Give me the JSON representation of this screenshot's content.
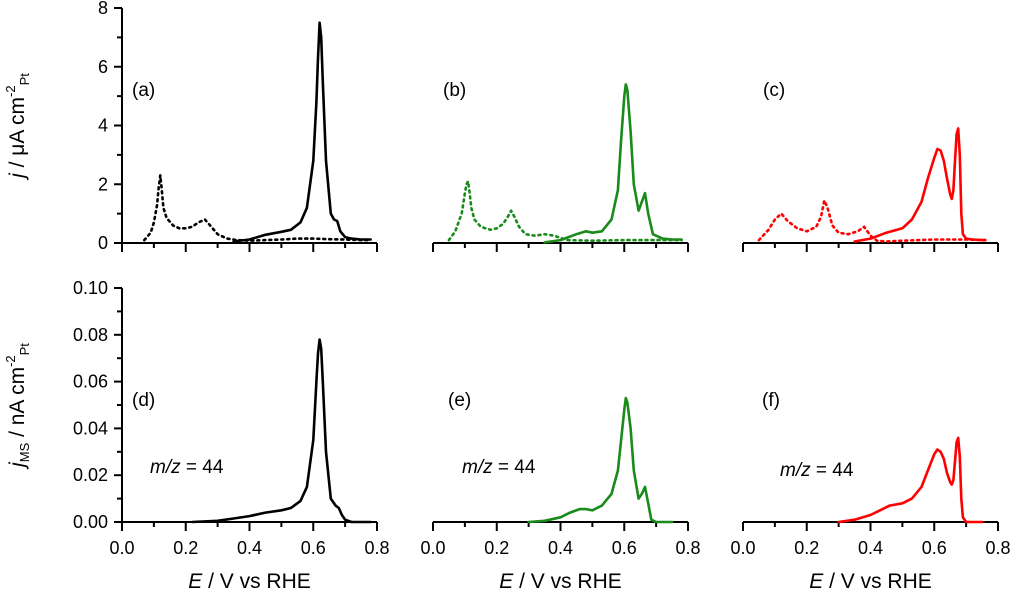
{
  "chart_data": [
    {
      "id": "a",
      "panel_label": "(a)",
      "type": "line",
      "color": "#000000",
      "xlim": [
        0,
        0.8
      ],
      "ylim": [
        0,
        8
      ],
      "ylabel": {
        "main": "j",
        "rest": " / μA cm",
        "sup": "-2",
        "sub": "Pt"
      },
      "yticks": [
        "0",
        "2",
        "4",
        "6",
        "8"
      ],
      "series": [
        {
          "style": "dotted",
          "x": [
            0.07,
            0.09,
            0.1,
            0.11,
            0.115,
            0.12,
            0.125,
            0.13,
            0.14,
            0.16,
            0.18,
            0.2,
            0.22,
            0.24,
            0.26,
            0.28,
            0.3,
            0.33,
            0.36,
            0.4,
            0.45,
            0.5,
            0.55,
            0.6,
            0.65,
            0.7,
            0.75,
            0.78
          ],
          "y": [
            0.1,
            0.35,
            0.7,
            1.3,
            1.9,
            2.3,
            1.8,
            1.2,
            0.85,
            0.6,
            0.5,
            0.5,
            0.55,
            0.7,
            0.8,
            0.55,
            0.3,
            0.15,
            0.1,
            0.08,
            0.1,
            0.12,
            0.15,
            0.15,
            0.13,
            0.12,
            0.1,
            0.1
          ]
        },
        {
          "style": "solid",
          "x": [
            0.35,
            0.4,
            0.45,
            0.5,
            0.53,
            0.56,
            0.58,
            0.6,
            0.61,
            0.615,
            0.62,
            0.625,
            0.63,
            0.64,
            0.655,
            0.665,
            0.675,
            0.685,
            0.7,
            0.72,
            0.75,
            0.78
          ],
          "y": [
            0.05,
            0.12,
            0.28,
            0.38,
            0.45,
            0.7,
            1.2,
            2.8,
            4.8,
            6.3,
            7.5,
            7.0,
            5.5,
            2.8,
            1.0,
            0.8,
            0.75,
            0.4,
            0.2,
            0.15,
            0.12,
            0.12
          ]
        }
      ]
    },
    {
      "id": "b",
      "panel_label": "(b)",
      "type": "line",
      "color": "#1a8a1a",
      "xlim": [
        0,
        0.8
      ],
      "ylim": [
        0,
        8
      ],
      "series": [
        {
          "style": "dotted",
          "x": [
            0.05,
            0.07,
            0.09,
            0.1,
            0.105,
            0.11,
            0.115,
            0.12,
            0.13,
            0.15,
            0.18,
            0.2,
            0.22,
            0.235,
            0.245,
            0.255,
            0.27,
            0.29,
            0.32,
            0.35,
            0.38,
            0.42,
            0.5,
            0.6,
            0.7,
            0.78
          ],
          "y": [
            0.1,
            0.4,
            1.0,
            1.7,
            2.0,
            2.1,
            1.7,
            1.2,
            0.8,
            0.55,
            0.45,
            0.5,
            0.65,
            0.9,
            1.1,
            0.9,
            0.55,
            0.3,
            0.25,
            0.3,
            0.25,
            0.1,
            0.08,
            0.1,
            0.1,
            0.1
          ]
        },
        {
          "style": "solid",
          "x": [
            0.35,
            0.4,
            0.45,
            0.48,
            0.5,
            0.53,
            0.56,
            0.58,
            0.59,
            0.6,
            0.605,
            0.61,
            0.62,
            0.63,
            0.645,
            0.655,
            0.665,
            0.675,
            0.69,
            0.72,
            0.75,
            0.78
          ],
          "y": [
            0.02,
            0.1,
            0.3,
            0.4,
            0.35,
            0.4,
            0.8,
            1.8,
            3.5,
            5.0,
            5.4,
            5.2,
            3.8,
            2.0,
            1.1,
            1.4,
            1.7,
            1.0,
            0.3,
            0.15,
            0.12,
            0.12
          ]
        }
      ]
    },
    {
      "id": "c",
      "panel_label": "(c)",
      "type": "line",
      "color": "#ff0000",
      "xlim": [
        0,
        0.8
      ],
      "ylim": [
        0,
        8
      ],
      "series": [
        {
          "style": "dotted",
          "x": [
            0.05,
            0.08,
            0.1,
            0.12,
            0.14,
            0.17,
            0.2,
            0.23,
            0.245,
            0.255,
            0.265,
            0.28,
            0.3,
            0.33,
            0.36,
            0.38,
            0.4,
            0.42,
            0.45,
            0.5,
            0.6,
            0.7,
            0.76
          ],
          "y": [
            0.1,
            0.45,
            0.8,
            1.0,
            0.75,
            0.5,
            0.4,
            0.55,
            0.9,
            1.45,
            1.2,
            0.6,
            0.35,
            0.3,
            0.4,
            0.55,
            0.25,
            0.08,
            0.05,
            0.08,
            0.12,
            0.12,
            0.1
          ]
        },
        {
          "style": "solid",
          "x": [
            0.35,
            0.4,
            0.45,
            0.5,
            0.53,
            0.56,
            0.58,
            0.6,
            0.61,
            0.62,
            0.63,
            0.64,
            0.65,
            0.655,
            0.66,
            0.665,
            0.67,
            0.675,
            0.68,
            0.685,
            0.69,
            0.7,
            0.72,
            0.75,
            0.76
          ],
          "y": [
            0.05,
            0.15,
            0.35,
            0.5,
            0.8,
            1.4,
            2.2,
            2.9,
            3.2,
            3.15,
            2.8,
            2.2,
            1.65,
            1.5,
            1.8,
            2.8,
            3.7,
            3.9,
            3.0,
            1.0,
            0.3,
            0.15,
            0.12,
            0.1,
            0.1
          ]
        }
      ]
    },
    {
      "id": "d",
      "panel_label": "(d)",
      "type": "line",
      "color": "#000000",
      "xlim": [
        0,
        0.8
      ],
      "ylim": [
        0,
        0.1
      ],
      "ylabel": {
        "main": "j",
        "msub": "MS",
        "rest": " / nA cm",
        "sup": "-2",
        "sub": "Pt"
      },
      "yticks": [
        "0.00",
        "0.02",
        "0.04",
        "0.06",
        "0.08",
        "0.10"
      ],
      "xticks": [
        "0.0",
        "0.2",
        "0.4",
        "0.6",
        "0.8"
      ],
      "xlabel": {
        "main": "E",
        "rest": " / V vs  RHE"
      },
      "annotation": {
        "italic": "m/z",
        "rest": " = 44"
      },
      "series": [
        {
          "style": "solid",
          "x": [
            0.22,
            0.3,
            0.35,
            0.4,
            0.45,
            0.5,
            0.53,
            0.56,
            0.58,
            0.6,
            0.61,
            0.615,
            0.62,
            0.625,
            0.63,
            0.64,
            0.655,
            0.67,
            0.68,
            0.69,
            0.7,
            0.72,
            0.75,
            0.78
          ],
          "y": [
            0.0,
            0.0005,
            0.0015,
            0.0025,
            0.004,
            0.005,
            0.006,
            0.009,
            0.015,
            0.035,
            0.06,
            0.072,
            0.078,
            0.074,
            0.06,
            0.03,
            0.01,
            0.007,
            0.006,
            0.003,
            0.001,
            0.0,
            0.0,
            0.0
          ]
        }
      ]
    },
    {
      "id": "e",
      "panel_label": "(e)",
      "type": "line",
      "color": "#1a8a1a",
      "xlim": [
        0,
        0.8
      ],
      "ylim": [
        0,
        0.1
      ],
      "xticks": [
        "0.0",
        "0.2",
        "0.4",
        "0.6",
        "0.8"
      ],
      "xlabel": {
        "main": "E",
        "rest": " / V vs  RHE"
      },
      "annotation": {
        "italic": "m/z",
        "rest": " = 44"
      },
      "series": [
        {
          "style": "solid",
          "x": [
            0.3,
            0.35,
            0.4,
            0.43,
            0.46,
            0.48,
            0.5,
            0.53,
            0.56,
            0.58,
            0.59,
            0.6,
            0.605,
            0.61,
            0.62,
            0.63,
            0.645,
            0.655,
            0.665,
            0.675,
            0.685,
            0.7,
            0.72,
            0.75
          ],
          "y": [
            0.0,
            0.0005,
            0.002,
            0.004,
            0.0055,
            0.0055,
            0.005,
            0.007,
            0.012,
            0.022,
            0.035,
            0.048,
            0.053,
            0.051,
            0.04,
            0.022,
            0.01,
            0.012,
            0.015,
            0.008,
            0.001,
            0.0,
            0.0,
            0.0
          ]
        }
      ]
    },
    {
      "id": "f",
      "panel_label": "(f)",
      "type": "line",
      "color": "#ff0000",
      "xlim": [
        0,
        0.8
      ],
      "ylim": [
        0,
        0.1
      ],
      "xticks": [
        "0.0",
        "0.2",
        "0.4",
        "0.6",
        "0.8"
      ],
      "xlabel": {
        "main": "E",
        "rest": " / V vs  RHE"
      },
      "annotation": {
        "italic": "m/z",
        "rest": " = 44"
      },
      "series": [
        {
          "style": "solid",
          "x": [
            0.3,
            0.35,
            0.4,
            0.43,
            0.46,
            0.5,
            0.53,
            0.56,
            0.58,
            0.6,
            0.61,
            0.62,
            0.63,
            0.64,
            0.65,
            0.655,
            0.66,
            0.665,
            0.67,
            0.675,
            0.68,
            0.685,
            0.69,
            0.7,
            0.72,
            0.75
          ],
          "y": [
            0.0,
            0.001,
            0.003,
            0.005,
            0.007,
            0.008,
            0.01,
            0.015,
            0.022,
            0.029,
            0.031,
            0.03,
            0.027,
            0.021,
            0.017,
            0.016,
            0.018,
            0.026,
            0.034,
            0.036,
            0.028,
            0.01,
            0.002,
            0.0,
            0.0,
            0.0
          ]
        }
      ]
    }
  ]
}
